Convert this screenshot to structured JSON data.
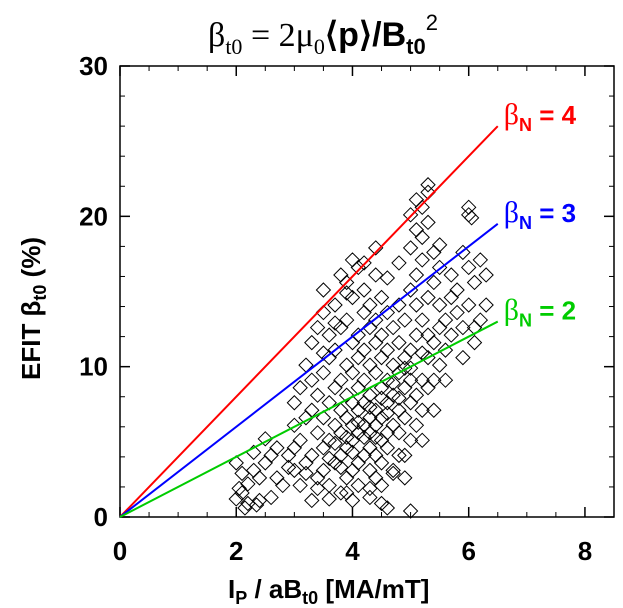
{
  "chart_data": {
    "type": "scatter",
    "title": {
      "beta": "β",
      "beta_sub": "t0",
      "rest": " = 2μ",
      "mu_sub": "0",
      "p_part": "⟨p⟩/B",
      "b_sub": "t0",
      "sup": "2"
    },
    "xlabel": {
      "main": "I",
      "sub1": "P",
      "mid": " / aB",
      "sub2": "t0",
      "end": " [MA/mT]"
    },
    "ylabel": {
      "main": "EFIT β",
      "sub": "t0",
      "end": " (%)"
    },
    "xlim": [
      0,
      8.5
    ],
    "ylim": [
      0,
      30
    ],
    "xticks": [
      0,
      2,
      4,
      6,
      8
    ],
    "yticks": [
      0,
      10,
      20,
      30
    ],
    "xtick_labels": [
      "0",
      "2",
      "4",
      "6",
      "8"
    ],
    "ytick_labels": [
      "0",
      "10",
      "20",
      "30"
    ],
    "marker": "open-diamond",
    "lines": [
      {
        "name": "βN = 4",
        "label_main": "β",
        "label_sub": "N",
        "label_value": " = 4",
        "slope": 4,
        "x_end": 6.5,
        "color": "#ff0000"
      },
      {
        "name": "βN = 3",
        "label_main": "β",
        "label_sub": "N",
        "label_value": " = 3",
        "slope": 3,
        "x_end": 6.5,
        "color": "#0000ff"
      },
      {
        "name": "βN = 2",
        "label_main": "β",
        "label_sub": "N",
        "label_value": " = 2",
        "slope": 2,
        "x_end": 6.5,
        "color": "#00cc00"
      }
    ],
    "scatter_points": [
      [
        2.0,
        1.2
      ],
      [
        2.1,
        1.6
      ],
      [
        2.2,
        2.2
      ],
      [
        2.3,
        3.1
      ],
      [
        2.4,
        2.6
      ],
      [
        2.5,
        3.6
      ],
      [
        2.6,
        4.1
      ],
      [
        2.5,
        5.2
      ],
      [
        2.7,
        4.6
      ],
      [
        2.8,
        2.1
      ],
      [
        2.9,
        3.3
      ],
      [
        2.6,
        1.3
      ],
      [
        2.4,
        1.1
      ],
      [
        2.2,
        0.9
      ],
      [
        2.1,
        2.9
      ],
      [
        2.3,
        4.3
      ],
      [
        2.0,
        3.6
      ],
      [
        2.05,
        1.9
      ],
      [
        2.15,
        0.6
      ],
      [
        2.35,
        0.8
      ],
      [
        3.0,
        3.1
      ],
      [
        3.0,
        4.6
      ],
      [
        3.0,
        6.1
      ],
      [
        3.0,
        7.6
      ],
      [
        3.1,
        5.1
      ],
      [
        3.1,
        8.6
      ],
      [
        3.2,
        3.6
      ],
      [
        3.2,
        6.6
      ],
      [
        3.2,
        10.1
      ],
      [
        3.3,
        4.1
      ],
      [
        3.3,
        7.1
      ],
      [
        3.3,
        9.1
      ],
      [
        3.3,
        11.6
      ],
      [
        3.4,
        2.6
      ],
      [
        3.4,
        5.6
      ],
      [
        3.4,
        8.1
      ],
      [
        3.4,
        12.6
      ],
      [
        3.5,
        3.1
      ],
      [
        3.5,
        4.6
      ],
      [
        3.5,
        6.6
      ],
      [
        3.5,
        9.6
      ],
      [
        3.5,
        13.6
      ],
      [
        3.5,
        15.1
      ],
      [
        3.6,
        2.1
      ],
      [
        3.6,
        5.1
      ],
      [
        3.6,
        7.6
      ],
      [
        3.6,
        10.6
      ],
      [
        3.6,
        12.1
      ],
      [
        3.7,
        3.6
      ],
      [
        3.7,
        6.1
      ],
      [
        3.7,
        8.6
      ],
      [
        3.7,
        11.1
      ],
      [
        3.7,
        14.1
      ],
      [
        3.8,
        1.6
      ],
      [
        3.8,
        4.1
      ],
      [
        3.8,
        5.6
      ],
      [
        3.8,
        7.1
      ],
      [
        3.8,
        9.1
      ],
      [
        3.8,
        12.6
      ],
      [
        3.8,
        16.1
      ],
      [
        3.9,
        2.6
      ],
      [
        3.9,
        4.6
      ],
      [
        3.9,
        6.6
      ],
      [
        3.9,
        8.1
      ],
      [
        3.9,
        10.1
      ],
      [
        3.9,
        13.1
      ],
      [
        3.9,
        15.6
      ],
      [
        4.0,
        3.1
      ],
      [
        4.0,
        5.1
      ],
      [
        4.0,
        6.1
      ],
      [
        4.0,
        7.6
      ],
      [
        4.0,
        9.6
      ],
      [
        4.0,
        11.6
      ],
      [
        4.0,
        14.6
      ],
      [
        4.0,
        17.1
      ],
      [
        4.1,
        2.1
      ],
      [
        4.1,
        3.6
      ],
      [
        4.1,
        5.6
      ],
      [
        4.1,
        7.1
      ],
      [
        4.1,
        8.6
      ],
      [
        4.1,
        10.6
      ],
      [
        4.1,
        12.1
      ],
      [
        4.1,
        16.6
      ],
      [
        4.2,
        4.1
      ],
      [
        4.2,
        6.1
      ],
      [
        4.2,
        7.6
      ],
      [
        4.2,
        9.1
      ],
      [
        4.2,
        11.1
      ],
      [
        4.2,
        13.6
      ],
      [
        4.2,
        15.1
      ],
      [
        4.3,
        3.1
      ],
      [
        4.3,
        4.6
      ],
      [
        4.3,
        5.6
      ],
      [
        4.3,
        6.6
      ],
      [
        4.3,
        8.1
      ],
      [
        4.3,
        10.1
      ],
      [
        4.3,
        12.6
      ],
      [
        4.3,
        14.1
      ],
      [
        4.4,
        2.6
      ],
      [
        4.4,
        4.1
      ],
      [
        4.4,
        6.1
      ],
      [
        4.4,
        7.1
      ],
      [
        4.4,
        9.6
      ],
      [
        4.4,
        11.6
      ],
      [
        4.4,
        13.1
      ],
      [
        4.4,
        16.1
      ],
      [
        4.5,
        3.6
      ],
      [
        4.5,
        5.1
      ],
      [
        4.5,
        6.6
      ],
      [
        4.5,
        8.6
      ],
      [
        4.5,
        10.6
      ],
      [
        4.5,
        12.1
      ],
      [
        4.5,
        14.6
      ],
      [
        4.6,
        4.6
      ],
      [
        4.6,
        5.6
      ],
      [
        4.6,
        7.6
      ],
      [
        4.6,
        9.1
      ],
      [
        4.6,
        11.1
      ],
      [
        4.6,
        13.6
      ],
      [
        4.7,
        3.1
      ],
      [
        4.7,
        6.1
      ],
      [
        4.7,
        8.1
      ],
      [
        4.7,
        10.1
      ],
      [
        4.7,
        12.6
      ],
      [
        4.8,
        4.1
      ],
      [
        4.8,
        5.6
      ],
      [
        4.8,
        7.1
      ],
      [
        4.8,
        9.6
      ],
      [
        4.8,
        11.6
      ],
      [
        4.8,
        14.1
      ],
      [
        4.9,
        2.6
      ],
      [
        4.9,
        6.6
      ],
      [
        4.9,
        8.6
      ],
      [
        4.9,
        10.6
      ],
      [
        4.9,
        13.1
      ],
      [
        5.0,
        5.1
      ],
      [
        5.0,
        7.6
      ],
      [
        5.0,
        9.1
      ],
      [
        5.0,
        11.1
      ],
      [
        5.0,
        15.1
      ],
      [
        5.0,
        20.1
      ],
      [
        5.1,
        6.1
      ],
      [
        5.1,
        8.1
      ],
      [
        5.1,
        12.1
      ],
      [
        5.1,
        16.1
      ],
      [
        5.1,
        19.1
      ],
      [
        5.1,
        21.1
      ],
      [
        5.2,
        7.1
      ],
      [
        5.2,
        9.1
      ],
      [
        5.2,
        13.1
      ],
      [
        5.2,
        17.1
      ],
      [
        5.2,
        18.6
      ],
      [
        5.2,
        20.6
      ],
      [
        5.3,
        8.6
      ],
      [
        5.3,
        10.6
      ],
      [
        5.3,
        14.6
      ],
      [
        5.3,
        19.6
      ],
      [
        5.3,
        21.6
      ],
      [
        5.3,
        22.1
      ],
      [
        5.4,
        9.1
      ],
      [
        5.4,
        11.6
      ],
      [
        5.4,
        15.6
      ],
      [
        5.4,
        17.6
      ],
      [
        5.5,
        10.1
      ],
      [
        5.5,
        12.6
      ],
      [
        5.5,
        16.6
      ],
      [
        5.5,
        18.1
      ],
      [
        5.6,
        11.1
      ],
      [
        5.6,
        13.1
      ],
      [
        5.7,
        12.1
      ],
      [
        5.7,
        14.6
      ],
      [
        5.8,
        13.6
      ],
      [
        5.8,
        15.1
      ],
      [
        5.9,
        10.6
      ],
      [
        5.9,
        12.6
      ],
      [
        6.0,
        14.1
      ],
      [
        6.0,
        20.1
      ],
      [
        6.0,
        20.6
      ],
      [
        6.05,
        19.9
      ],
      [
        6.1,
        11.6
      ],
      [
        6.1,
        15.6
      ],
      [
        6.2,
        13.1
      ],
      [
        6.2,
        17.1
      ],
      [
        6.3,
        16.1
      ],
      [
        6.3,
        14.1
      ],
      [
        6.1,
        12.6
      ],
      [
        5.9,
        17.6
      ],
      [
        6.0,
        16.6
      ],
      [
        4.0,
        1.1
      ],
      [
        4.5,
        0.9
      ],
      [
        4.6,
        0.6
      ],
      [
        5.0,
        0.4
      ],
      [
        3.9,
        1.6
      ],
      [
        4.3,
        1.9
      ],
      [
        3.3,
        1.1
      ],
      [
        3.1,
        2.1
      ],
      [
        2.7,
        2.6
      ],
      [
        2.9,
        4.1
      ],
      [
        3.5,
        10.9
      ],
      [
        3.7,
        12.9
      ],
      [
        3.9,
        14.9
      ],
      [
        4.2,
        16.9
      ],
      [
        4.4,
        17.9
      ],
      [
        4.6,
        15.9
      ],
      [
        4.8,
        16.9
      ],
      [
        5.0,
        17.9
      ],
      [
        5.1,
        14.1
      ],
      [
        5.3,
        12.1
      ],
      [
        5.5,
        14.1
      ],
      [
        5.7,
        16.1
      ],
      [
        5.6,
        9.1
      ],
      [
        5.4,
        7.1
      ],
      [
        5.2,
        5.1
      ],
      [
        4.9,
        4.1
      ],
      [
        4.7,
        2.9
      ],
      [
        4.5,
        2.1
      ],
      [
        4.3,
        1.3
      ],
      [
        3.6,
        1.2
      ],
      [
        3.4,
        1.9
      ],
      [
        3.2,
        2.9
      ],
      [
        3.8,
        3.3
      ],
      [
        4.0,
        4.3
      ],
      [
        4.2,
        5.3
      ],
      [
        4.4,
        5.3
      ],
      [
        4.6,
        6.9
      ],
      [
        4.8,
        7.9
      ],
      [
        5.0,
        9.9
      ],
      [
        5.2,
        10.9
      ],
      [
        3.6,
        3.9
      ],
      [
        3.7,
        4.9
      ],
      [
        3.9,
        5.3
      ],
      [
        4.1,
        6.3
      ],
      [
        4.3,
        7.3
      ],
      [
        4.5,
        7.9
      ],
      [
        4.7,
        8.9
      ],
      [
        4.9,
        9.9
      ]
    ]
  }
}
